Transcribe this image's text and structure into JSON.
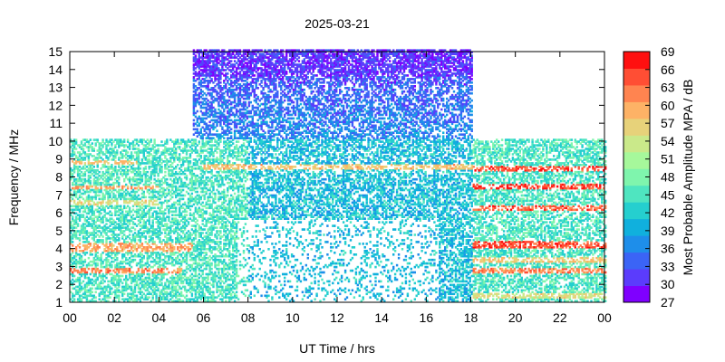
{
  "chart_data": {
    "type": "heatmap",
    "title": "2025-03-21",
    "xlabel": "UT Time / hrs",
    "ylabel": "Frequency / MHz",
    "colorbar_label": "Most Probable Amplitude MPA / dB",
    "xlim": [
      0,
      24
    ],
    "ylim": [
      1,
      15
    ],
    "x_ticks": [
      "00",
      "02",
      "04",
      "06",
      "08",
      "10",
      "12",
      "14",
      "16",
      "18",
      "20",
      "22",
      "00"
    ],
    "y_ticks": [
      "1",
      "2",
      "3",
      "4",
      "5",
      "6",
      "7",
      "8",
      "9",
      "10",
      "11",
      "12",
      "13",
      "14",
      "15"
    ],
    "colorbar": {
      "range": [
        27,
        69
      ],
      "ticks": [
        "69",
        "66",
        "63",
        "60",
        "57",
        "54",
        "51",
        "48",
        "45",
        "42",
        "39",
        "36",
        "33",
        "30",
        "27"
      ],
      "colors": [
        "#7f00ff",
        "#5b3cfc",
        "#3b64f6",
        "#1e8eea",
        "#10b0dd",
        "#25cfcf",
        "#4fe5c0",
        "#7ff5ad",
        "#a6f89b",
        "#cae98a",
        "#e7d27a",
        "#fdb266",
        "#ff8450",
        "#ff4e34",
        "#ff1010"
      ]
    },
    "coverage": [
      {
        "x": [
          0,
          5.5
        ],
        "y": [
          1,
          10
        ]
      },
      {
        "x": [
          5.5,
          8
        ],
        "y": [
          1,
          15
        ]
      },
      {
        "x": [
          8,
          18
        ],
        "y": [
          1,
          15
        ]
      },
      {
        "x": [
          18,
          24
        ],
        "y": [
          1,
          10
        ]
      }
    ],
    "bands": [
      {
        "x": [
          0,
          5.5
        ],
        "y": [
          3.8,
          4.3
        ],
        "mpa": 60
      },
      {
        "x": [
          0,
          5
        ],
        "y": [
          2.6,
          2.9
        ],
        "mpa": 62
      },
      {
        "x": [
          0,
          4
        ],
        "y": [
          7.2,
          7.4
        ],
        "mpa": 60
      },
      {
        "x": [
          0,
          4
        ],
        "y": [
          6.3,
          6.6
        ],
        "mpa": 55
      },
      {
        "x": [
          0,
          3
        ],
        "y": [
          8.6,
          8.8
        ],
        "mpa": 58
      },
      {
        "x": [
          6,
          18
        ],
        "y": [
          8.3,
          8.6
        ],
        "mpa": 58
      },
      {
        "x": [
          18,
          24
        ],
        "y": [
          8.2,
          8.5
        ],
        "mpa": 65
      },
      {
        "x": [
          18,
          24
        ],
        "y": [
          7.2,
          7.5
        ],
        "mpa": 66
      },
      {
        "x": [
          18,
          24
        ],
        "y": [
          4.0,
          4.4
        ],
        "mpa": 65
      },
      {
        "x": [
          18,
          24
        ],
        "y": [
          2.6,
          2.9
        ],
        "mpa": 62
      },
      {
        "x": [
          18,
          24
        ],
        "y": [
          6.0,
          6.3
        ],
        "mpa": 64
      },
      {
        "x": [
          18,
          24
        ],
        "y": [
          3.2,
          3.5
        ],
        "mpa": 57
      },
      {
        "x": [
          18,
          24
        ],
        "y": [
          1.2,
          1.5
        ],
        "mpa": 55
      },
      {
        "x": [
          5.5,
          18
        ],
        "y": [
          13.5,
          15
        ],
        "mpa": 31
      }
    ]
  }
}
